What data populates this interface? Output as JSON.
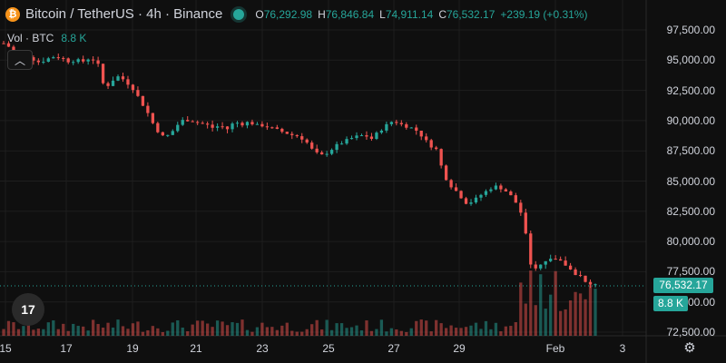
{
  "header": {
    "coin_glyph": "₿",
    "title": "Bitcoin / TetherUS · 4h · Binance",
    "ohlc": {
      "o_label": "O",
      "o_value": "76,292.98",
      "h_label": "H",
      "h_value": "76,846.84",
      "l_label": "L",
      "l_value": "74,911.14",
      "c_label": "C",
      "c_value": "76,532.17",
      "change": "+239.19 (+0.31%)"
    }
  },
  "volume": {
    "label": "Vol · BTC",
    "value": "8.8 K"
  },
  "controls": {
    "collapse_icon": "chevron-up-icon",
    "collapse_glyph": "︿",
    "settings_glyph": "⚙"
  },
  "logo_text": "17",
  "price_axis": {
    "ticks": [
      "97,500.00",
      "95,000.00",
      "92,500.00",
      "90,000.00",
      "87,500.00",
      "85,000.00",
      "82,500.00",
      "80,000.00",
      "77,500.00",
      "75,000.00",
      "72,500.00"
    ],
    "tick_values": [
      97500,
      95000,
      92500,
      90000,
      87500,
      85000,
      82500,
      80000,
      77500,
      75000,
      72500
    ],
    "last_price": "76,532.17",
    "last_volume": "8.8 K"
  },
  "time_axis": {
    "ticks": [
      "15",
      "17",
      "19",
      "21",
      "23",
      "25",
      "27",
      "29",
      "Feb",
      "3"
    ]
  },
  "colors": {
    "up": "#26a69a",
    "down": "#ef5350",
    "background": "#0f0f0f",
    "grid": "#1e1e1e"
  },
  "chart_data": {
    "type": "candlestick",
    "ylim": [
      72500,
      98500
    ],
    "price_path": [
      96400,
      96000,
      95300,
      95500,
      95100,
      94800,
      95100,
      95300,
      95200,
      94900,
      95000,
      94900,
      95200,
      94800,
      92600,
      93300,
      93700,
      93200,
      92600,
      91600,
      90600,
      89400,
      88700,
      88800,
      89600,
      90100,
      90000,
      89800,
      89700,
      89400,
      89600,
      89300,
      89900,
      89700,
      89900,
      89600,
      89600,
      89400,
      89200,
      89000,
      88800,
      88700,
      88200,
      87400,
      87100,
      87400,
      87900,
      88200,
      88500,
      88700,
      88800,
      88500,
      89100,
      89600,
      90000,
      89700,
      89500,
      89300,
      88700,
      88000,
      87600,
      85500,
      84600,
      84000,
      83200,
      83300,
      83800,
      84200,
      84600,
      84400,
      84000,
      83200,
      82000,
      78000,
      77800,
      78400,
      78700,
      78400,
      78000,
      77400,
      77100,
      76300,
      76530
    ]
  }
}
